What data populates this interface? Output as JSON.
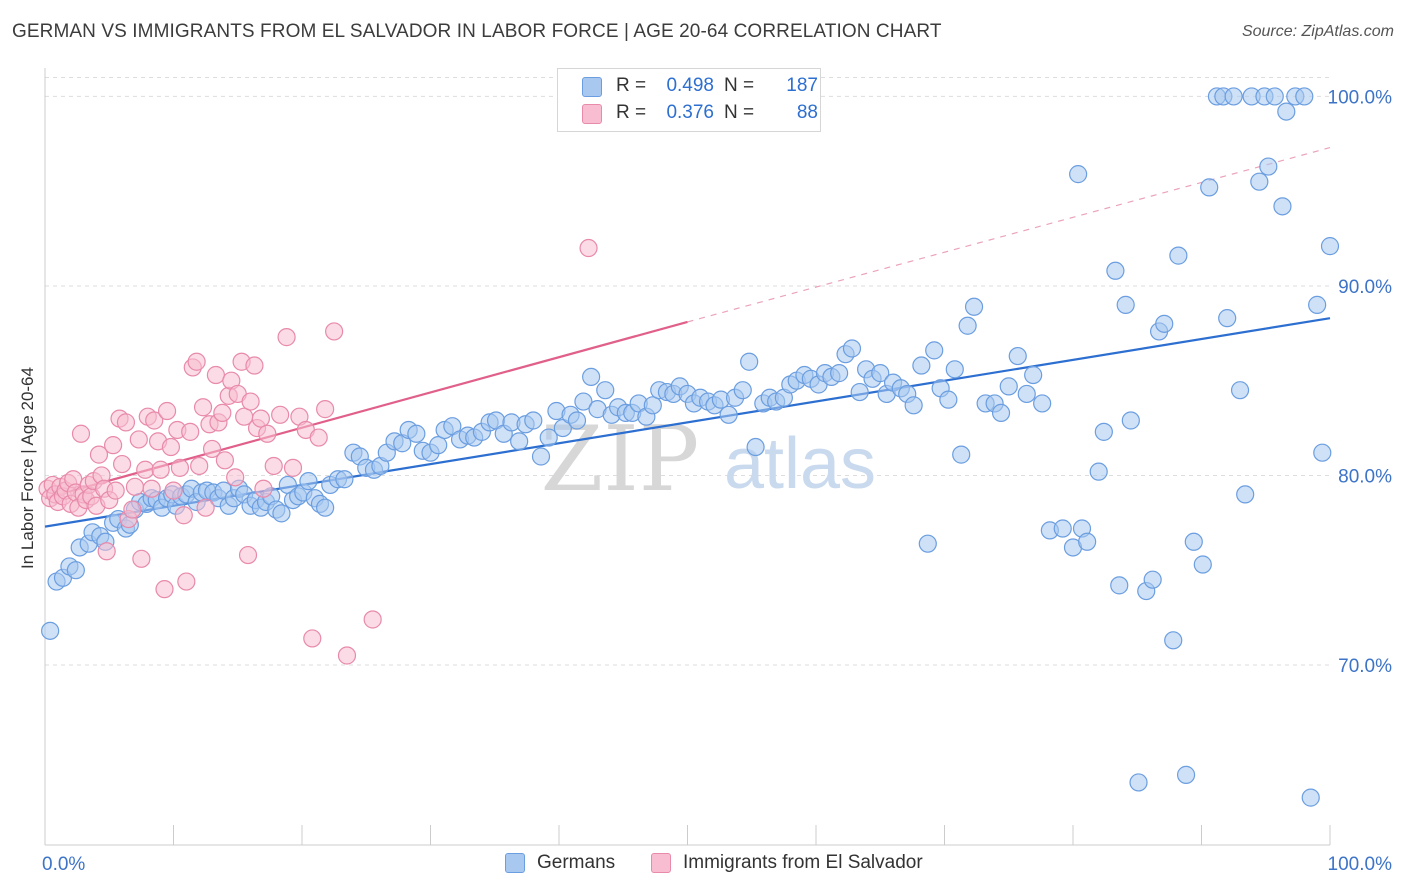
{
  "chart_data": {
    "type": "scatter",
    "title": "GERMAN VS IMMIGRANTS FROM EL SALVADOR IN LABOR FORCE | AGE 20-64 CORRELATION CHART",
    "source": "Source: ZipAtlas.com",
    "ylabel": "In Labor Force | Age 20-64",
    "xlabel": "",
    "xlim": [
      0,
      100
    ],
    "ylim": [
      60.5,
      101.5
    ],
    "x_tick_labels": [
      "0.0%",
      "100.0%"
    ],
    "y_tick_values": [
      70,
      80,
      90,
      100
    ],
    "y_tick_labels": [
      "70.0%",
      "80.0%",
      "90.0%",
      "100.0%"
    ],
    "watermark": {
      "part1": "ZIP",
      "part2": "atlas"
    },
    "legend": [
      {
        "r_label": "R =",
        "r_value": "0.498",
        "n_label": "N =",
        "n_value": "187"
      },
      {
        "r_label": "R =",
        "r_value": "0.376",
        "n_label": "N =",
        "n_value": "88"
      }
    ],
    "series": [
      {
        "name": "Germans",
        "marker_fill": "#a8c8f0",
        "marker_stroke": "#6b9ee0",
        "line_color": "#2d6fd0",
        "trend": {
          "x0": 0,
          "y0": 77.3,
          "x1": 100,
          "y1": 88.3
        },
        "points": [
          [
            0.4,
            71.8
          ],
          [
            0.9,
            74.4
          ],
          [
            1.4,
            74.6
          ],
          [
            1.9,
            75.2
          ],
          [
            2.4,
            75.0
          ],
          [
            2.7,
            76.2
          ],
          [
            3.4,
            76.4
          ],
          [
            3.7,
            77.0
          ],
          [
            4.3,
            76.8
          ],
          [
            4.7,
            76.5
          ],
          [
            5.3,
            77.5
          ],
          [
            5.7,
            77.7
          ],
          [
            6.3,
            77.2
          ],
          [
            6.6,
            77.4
          ],
          [
            7.0,
            78.2
          ],
          [
            7.4,
            78.6
          ],
          [
            7.9,
            78.5
          ],
          [
            8.3,
            78.8
          ],
          [
            8.7,
            78.7
          ],
          [
            9.1,
            78.3
          ],
          [
            9.5,
            78.8
          ],
          [
            9.9,
            79.0
          ],
          [
            10.2,
            78.4
          ],
          [
            10.6,
            78.9
          ],
          [
            11.0,
            79.0
          ],
          [
            11.4,
            79.3
          ],
          [
            11.8,
            78.6
          ],
          [
            12.2,
            79.1
          ],
          [
            12.6,
            79.2
          ],
          [
            13.1,
            79.1
          ],
          [
            13.5,
            78.8
          ],
          [
            13.9,
            79.2
          ],
          [
            14.3,
            78.4
          ],
          [
            14.7,
            78.8
          ],
          [
            15.1,
            79.3
          ],
          [
            15.5,
            79.0
          ],
          [
            16.0,
            78.4
          ],
          [
            16.4,
            78.7
          ],
          [
            16.8,
            78.3
          ],
          [
            17.2,
            78.6
          ],
          [
            17.6,
            78.9
          ],
          [
            18.0,
            78.2
          ],
          [
            18.4,
            78.0
          ],
          [
            18.9,
            79.5
          ],
          [
            19.3,
            78.7
          ],
          [
            19.7,
            78.9
          ],
          [
            20.1,
            79.1
          ],
          [
            20.5,
            79.7
          ],
          [
            21.0,
            78.8
          ],
          [
            21.4,
            78.5
          ],
          [
            21.8,
            78.3
          ],
          [
            22.2,
            79.5
          ],
          [
            22.8,
            79.8
          ],
          [
            23.3,
            79.8
          ],
          [
            24.0,
            81.2
          ],
          [
            24.5,
            81.0
          ],
          [
            25.0,
            80.4
          ],
          [
            25.6,
            80.3
          ],
          [
            26.1,
            80.5
          ],
          [
            26.6,
            81.2
          ],
          [
            27.2,
            81.8
          ],
          [
            27.8,
            81.7
          ],
          [
            28.3,
            82.4
          ],
          [
            28.9,
            82.2
          ],
          [
            29.4,
            81.3
          ],
          [
            30.0,
            81.2
          ],
          [
            30.6,
            81.6
          ],
          [
            31.1,
            82.4
          ],
          [
            31.7,
            82.6
          ],
          [
            32.3,
            81.9
          ],
          [
            32.9,
            82.1
          ],
          [
            33.4,
            82.0
          ],
          [
            34.0,
            82.3
          ],
          [
            34.6,
            82.8
          ],
          [
            35.1,
            82.9
          ],
          [
            35.7,
            82.2
          ],
          [
            36.3,
            82.8
          ],
          [
            36.9,
            81.8
          ],
          [
            37.4,
            82.7
          ],
          [
            38.0,
            82.9
          ],
          [
            38.6,
            81.0
          ],
          [
            39.2,
            82.0
          ],
          [
            39.8,
            83.4
          ],
          [
            40.3,
            82.5
          ],
          [
            40.9,
            83.2
          ],
          [
            41.4,
            82.9
          ],
          [
            41.9,
            83.9
          ],
          [
            42.5,
            85.2
          ],
          [
            43.0,
            83.5
          ],
          [
            43.6,
            84.5
          ],
          [
            44.1,
            83.2
          ],
          [
            44.6,
            83.6
          ],
          [
            45.2,
            83.3
          ],
          [
            45.7,
            83.3
          ],
          [
            46.2,
            83.8
          ],
          [
            46.8,
            83.1
          ],
          [
            47.3,
            83.7
          ],
          [
            47.8,
            84.5
          ],
          [
            48.4,
            84.4
          ],
          [
            48.9,
            84.3
          ],
          [
            49.4,
            84.7
          ],
          [
            50.0,
            84.3
          ],
          [
            50.5,
            83.8
          ],
          [
            51.0,
            84.1
          ],
          [
            51.6,
            83.9
          ],
          [
            52.1,
            83.7
          ],
          [
            52.6,
            84.0
          ],
          [
            53.2,
            83.2
          ],
          [
            53.7,
            84.1
          ],
          [
            54.3,
            84.5
          ],
          [
            54.8,
            86.0
          ],
          [
            55.3,
            81.5
          ],
          [
            55.9,
            83.8
          ],
          [
            56.4,
            84.1
          ],
          [
            56.9,
            83.9
          ],
          [
            57.5,
            84.1
          ],
          [
            58.0,
            84.8
          ],
          [
            58.5,
            85.0
          ],
          [
            59.1,
            85.3
          ],
          [
            59.6,
            85.1
          ],
          [
            60.2,
            84.8
          ],
          [
            60.7,
            85.4
          ],
          [
            61.2,
            85.2
          ],
          [
            61.8,
            85.4
          ],
          [
            62.3,
            86.4
          ],
          [
            62.8,
            86.7
          ],
          [
            63.4,
            84.4
          ],
          [
            63.9,
            85.6
          ],
          [
            64.4,
            85.1
          ],
          [
            65.0,
            85.4
          ],
          [
            65.5,
            84.3
          ],
          [
            66.0,
            84.9
          ],
          [
            66.6,
            84.6
          ],
          [
            67.1,
            84.3
          ],
          [
            67.6,
            83.7
          ],
          [
            68.2,
            85.8
          ],
          [
            68.7,
            76.4
          ],
          [
            69.2,
            86.6
          ],
          [
            69.7,
            84.6
          ],
          [
            70.3,
            84.0
          ],
          [
            70.8,
            85.6
          ],
          [
            71.3,
            81.1
          ],
          [
            71.8,
            87.9
          ],
          [
            72.3,
            88.9
          ],
          [
            73.2,
            83.8
          ],
          [
            73.9,
            83.8
          ],
          [
            74.4,
            83.3
          ],
          [
            75.0,
            84.7
          ],
          [
            75.7,
            86.3
          ],
          [
            76.4,
            84.3
          ],
          [
            76.9,
            85.3
          ],
          [
            77.6,
            83.8
          ],
          [
            78.2,
            77.1
          ],
          [
            79.2,
            77.2
          ],
          [
            80.0,
            76.2
          ],
          [
            80.4,
            95.9
          ],
          [
            80.7,
            77.2
          ],
          [
            81.1,
            76.5
          ],
          [
            82.0,
            80.2
          ],
          [
            82.4,
            82.3
          ],
          [
            83.3,
            90.8
          ],
          [
            83.6,
            74.2
          ],
          [
            84.1,
            89.0
          ],
          [
            84.5,
            82.9
          ],
          [
            85.1,
            63.8
          ],
          [
            85.7,
            73.9
          ],
          [
            86.2,
            74.5
          ],
          [
            86.7,
            87.6
          ],
          [
            87.1,
            88.0
          ],
          [
            87.8,
            71.3
          ],
          [
            88.2,
            91.6
          ],
          [
            88.8,
            64.2
          ],
          [
            89.4,
            76.5
          ],
          [
            90.1,
            75.3
          ],
          [
            90.6,
            95.2
          ],
          [
            91.2,
            100.0
          ],
          [
            91.7,
            100.0
          ],
          [
            92.0,
            88.3
          ],
          [
            92.5,
            100.0
          ],
          [
            93.0,
            84.5
          ],
          [
            93.4,
            79.0
          ],
          [
            93.9,
            100.0
          ],
          [
            94.5,
            95.5
          ],
          [
            94.9,
            100.0
          ],
          [
            95.2,
            96.3
          ],
          [
            95.7,
            100.0
          ],
          [
            96.3,
            94.2
          ],
          [
            96.6,
            99.2
          ],
          [
            97.3,
            100.0
          ],
          [
            98.0,
            100.0
          ],
          [
            98.5,
            63.0
          ],
          [
            99.0,
            89.0
          ],
          [
            99.4,
            81.2
          ],
          [
            100.0,
            92.1
          ]
        ]
      },
      {
        "name": "Immigrants from El Salvador",
        "marker_fill": "#f8bdd0",
        "marker_stroke": "#e88aaa",
        "line_color": "#e0608a",
        "trend": {
          "x0": 0,
          "y0": 78.8,
          "x1": 50,
          "y1": 88.1
        },
        "trend_ext": {
          "x0": 50,
          "y0": 88.1,
          "x1": 100,
          "y1": 97.3
        },
        "points": [
          [
            0.2,
            79.3
          ],
          [
            0.4,
            78.8
          ],
          [
            0.6,
            79.5
          ],
          [
            0.8,
            79.0
          ],
          [
            1.0,
            78.6
          ],
          [
            1.2,
            79.4
          ],
          [
            1.4,
            78.9
          ],
          [
            1.6,
            79.2
          ],
          [
            1.8,
            79.6
          ],
          [
            2.0,
            78.5
          ],
          [
            2.2,
            79.8
          ],
          [
            2.4,
            79.1
          ],
          [
            2.6,
            78.3
          ],
          [
            2.8,
            82.2
          ],
          [
            3.0,
            79.0
          ],
          [
            3.2,
            78.7
          ],
          [
            3.4,
            79.5
          ],
          [
            3.6,
            78.9
          ],
          [
            3.8,
            79.7
          ],
          [
            4.0,
            78.4
          ],
          [
            4.2,
            81.1
          ],
          [
            4.4,
            80.0
          ],
          [
            4.6,
            79.3
          ],
          [
            4.8,
            76.0
          ],
          [
            5.0,
            78.7
          ],
          [
            5.3,
            81.6
          ],
          [
            5.5,
            79.2
          ],
          [
            5.8,
            83.0
          ],
          [
            6.0,
            80.6
          ],
          [
            6.3,
            82.8
          ],
          [
            6.5,
            77.7
          ],
          [
            6.8,
            78.2
          ],
          [
            7.0,
            79.4
          ],
          [
            7.3,
            81.9
          ],
          [
            7.5,
            75.6
          ],
          [
            7.8,
            80.3
          ],
          [
            8.0,
            83.1
          ],
          [
            8.3,
            79.3
          ],
          [
            8.5,
            82.9
          ],
          [
            8.8,
            81.8
          ],
          [
            9.0,
            80.3
          ],
          [
            9.3,
            74.0
          ],
          [
            9.5,
            83.4
          ],
          [
            9.8,
            81.5
          ],
          [
            10.0,
            79.2
          ],
          [
            10.3,
            82.4
          ],
          [
            10.5,
            80.4
          ],
          [
            10.8,
            77.9
          ],
          [
            11.0,
            74.4
          ],
          [
            11.3,
            82.3
          ],
          [
            11.5,
            85.7
          ],
          [
            11.8,
            86.0
          ],
          [
            12.0,
            80.5
          ],
          [
            12.3,
            83.6
          ],
          [
            12.5,
            78.3
          ],
          [
            12.8,
            82.7
          ],
          [
            13.0,
            81.4
          ],
          [
            13.3,
            85.3
          ],
          [
            13.5,
            82.8
          ],
          [
            13.8,
            83.3
          ],
          [
            14.0,
            80.8
          ],
          [
            14.3,
            84.2
          ],
          [
            14.5,
            85.0
          ],
          [
            14.8,
            79.9
          ],
          [
            15.0,
            84.3
          ],
          [
            15.3,
            86.0
          ],
          [
            15.5,
            83.1
          ],
          [
            15.8,
            75.8
          ],
          [
            16.0,
            83.9
          ],
          [
            16.3,
            85.8
          ],
          [
            16.5,
            82.5
          ],
          [
            16.8,
            83.0
          ],
          [
            17.0,
            79.3
          ],
          [
            17.3,
            82.2
          ],
          [
            17.8,
            80.5
          ],
          [
            18.3,
            83.2
          ],
          [
            18.8,
            87.3
          ],
          [
            19.3,
            80.4
          ],
          [
            19.8,
            83.1
          ],
          [
            20.3,
            82.4
          ],
          [
            20.8,
            71.4
          ],
          [
            21.3,
            82.0
          ],
          [
            21.8,
            83.5
          ],
          [
            22.5,
            87.6
          ],
          [
            23.5,
            70.5
          ],
          [
            25.5,
            72.4
          ],
          [
            42.3,
            92.0
          ]
        ]
      }
    ]
  }
}
